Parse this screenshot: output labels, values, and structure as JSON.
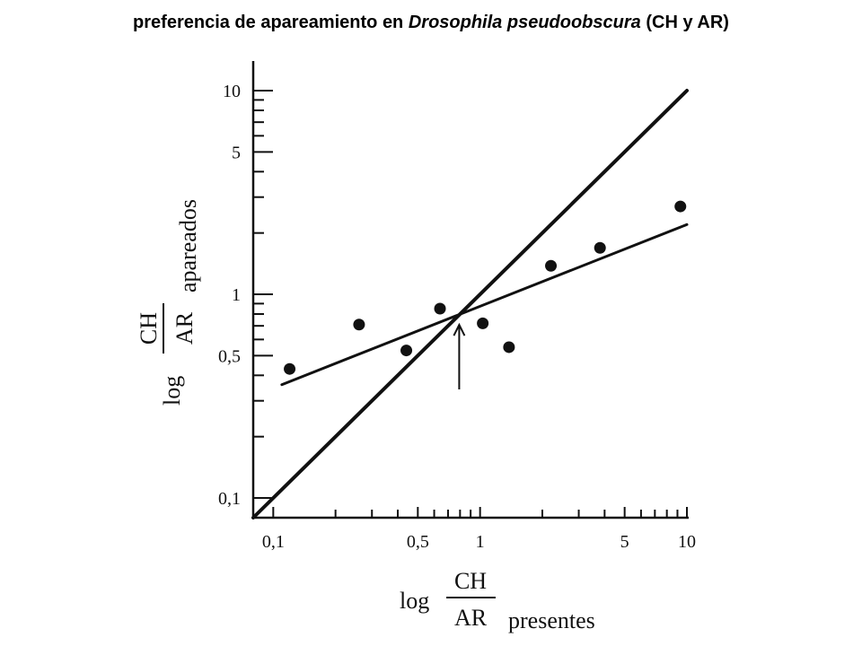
{
  "title": {
    "prefix": "preferencia de apareamiento en ",
    "species": "Drosophila pseudoobscura",
    "suffix": " (CH y AR)"
  },
  "chart_data": {
    "type": "scatter",
    "x_scale": "log",
    "y_scale": "log",
    "xlim": [
      0.08,
      10.5
    ],
    "ylim": [
      0.08,
      14
    ],
    "x_ticks": [
      {
        "value": 0.1,
        "label": "0,1"
      },
      {
        "value": 0.5,
        "label": "0,5"
      },
      {
        "value": 1,
        "label": "1"
      },
      {
        "value": 5,
        "label": "5"
      },
      {
        "value": 10,
        "label": "10"
      }
    ],
    "y_ticks": [
      {
        "value": 0.1,
        "label": "0,1"
      },
      {
        "value": 0.5,
        "label": "0,5"
      },
      {
        "value": 1,
        "label": "1"
      },
      {
        "value": 5,
        "label": "5"
      },
      {
        "value": 10,
        "label": "10"
      }
    ],
    "xlabel": {
      "prefix": "log",
      "numerator": "CH",
      "denominator": "AR",
      "suffix": "presentes"
    },
    "ylabel": {
      "prefix": "log",
      "numerator": "CH",
      "denominator": "AR",
      "suffix": "apareados"
    },
    "points": [
      {
        "x": 0.12,
        "y": 0.43
      },
      {
        "x": 0.26,
        "y": 0.71
      },
      {
        "x": 0.44,
        "y": 0.53
      },
      {
        "x": 0.64,
        "y": 0.85
      },
      {
        "x": 1.03,
        "y": 0.72
      },
      {
        "x": 1.38,
        "y": 0.55
      },
      {
        "x": 2.2,
        "y": 1.38
      },
      {
        "x": 3.8,
        "y": 1.69
      },
      {
        "x": 9.3,
        "y": 2.7
      }
    ],
    "lines": [
      {
        "name": "",
        "x": [
          0.08,
          10
        ],
        "y": [
          0.08,
          10
        ]
      },
      {
        "name": "",
        "x": [
          0.11,
          10
        ],
        "y": [
          0.36,
          2.2
        ]
      }
    ],
    "annotation": {
      "type": "arrow",
      "x": 0.85,
      "y": 0.85
    }
  }
}
